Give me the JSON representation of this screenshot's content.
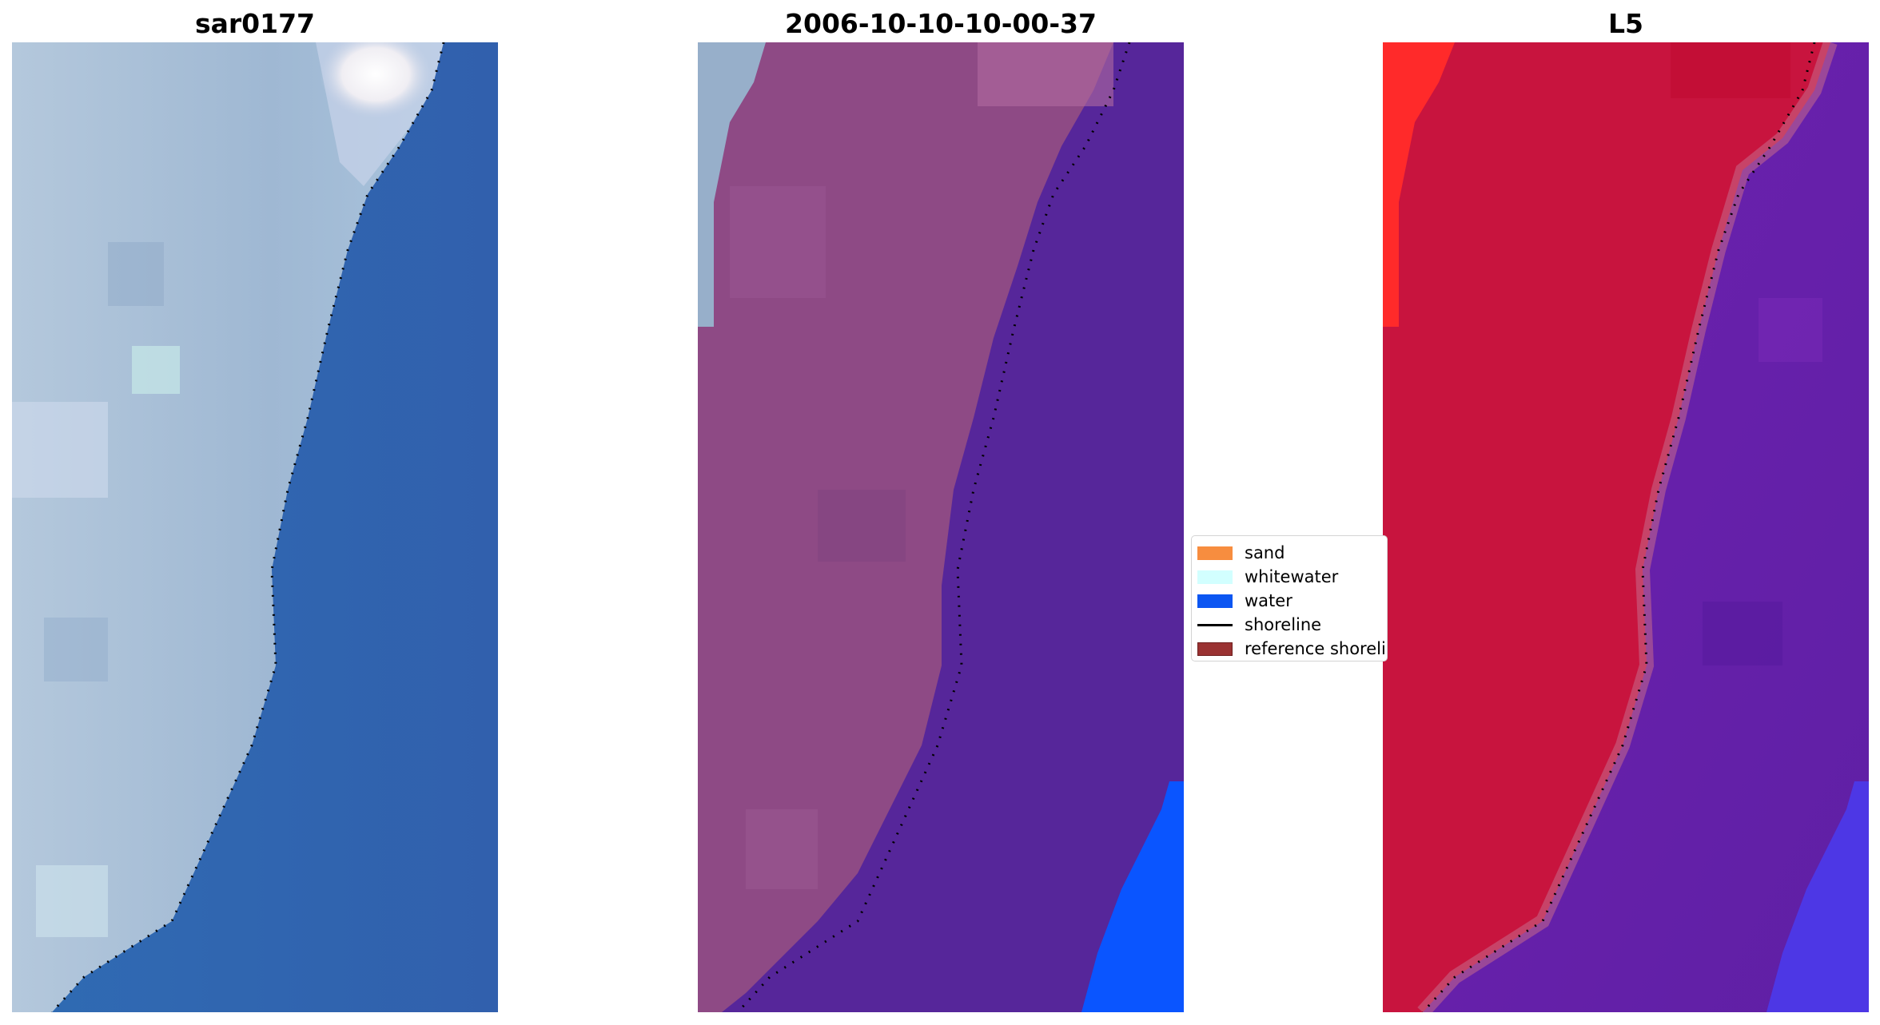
{
  "panels": [
    {
      "title": "sar0177",
      "description": "rgb-image"
    },
    {
      "title": "2006-10-10-10-00-37",
      "description": "classified-image"
    },
    {
      "title": "L5",
      "description": "index-image"
    }
  ],
  "legend": {
    "items": [
      {
        "label": "sand",
        "color": "#f78d3f",
        "kind": "patch"
      },
      {
        "label": "whitewater",
        "color": "#d2ffff",
        "kind": "patch"
      },
      {
        "label": "water",
        "color": "#0c56f2",
        "kind": "patch"
      },
      {
        "label": "shoreline",
        "color": "#000000",
        "kind": "line"
      },
      {
        "label": "reference shoreline",
        "color": "#9a3232",
        "kind": "patch"
      }
    ]
  },
  "colors": {
    "sar_sand": "#a9bfd6",
    "sar_water": "#3265ad",
    "class_land": "#8e4a85",
    "class_water": "#56269a",
    "class_bright_water": "#0a55ff",
    "index_land": "#c8143e",
    "index_water": "#6a1ea8",
    "index_bright": "#ff2020"
  }
}
